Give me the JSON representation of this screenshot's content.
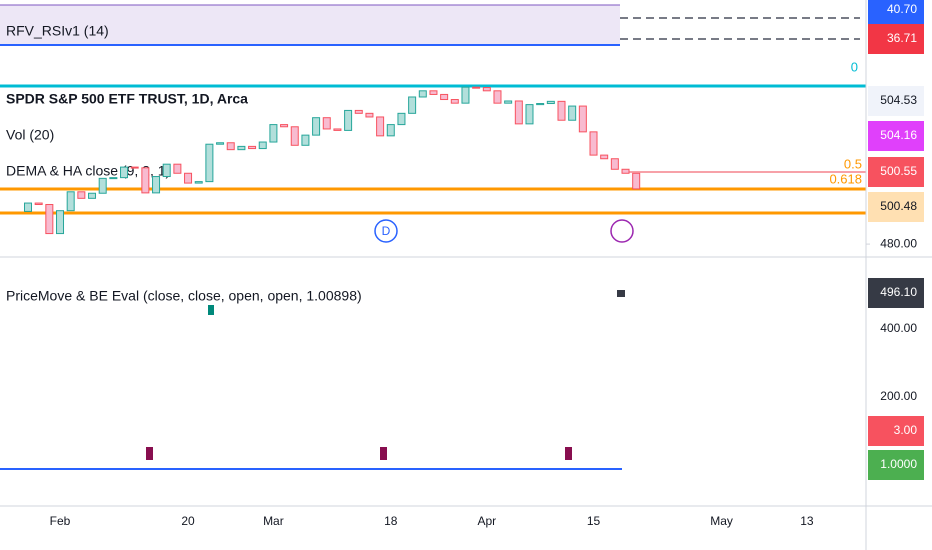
{
  "legend": {
    "rsi": "RFV_RSIv1 (14)",
    "symbol": "SPDR S&P 500 ETF TRUST, 1D, Arca",
    "volume": "Vol (20)",
    "dema": "DEMA & HA close (9, 2, 1)",
    "pricemove": "PriceMove & BE Eval (close, close, open, open, 1.00898)"
  },
  "fib_labels": [
    "0",
    "0.5",
    "0.618"
  ],
  "price_tags": [
    {
      "text": "40.70",
      "bg": "#2962ff",
      "fg": "#ffffff"
    },
    {
      "text": "36.71",
      "bg": "#f23645",
      "fg": "#ffffff"
    },
    {
      "text": "504.53",
      "bg": "#f0f3fa",
      "fg": "#131722"
    },
    {
      "text": "504.16",
      "bg": "#e040fb",
      "fg": "#ffffff"
    },
    {
      "text": "500.55",
      "bg": "#f7525f",
      "fg": "#ffffff"
    },
    {
      "text": "500.48",
      "bg": "#ffe0b2",
      "fg": "#131722"
    },
    {
      "text": "496.10",
      "bg": "#363a45",
      "fg": "#ffffff"
    },
    {
      "text": "3.00",
      "bg": "#f7525f",
      "fg": "#ffffff"
    },
    {
      "text": "1.0000",
      "bg": "#4caf50",
      "fg": "#ffffff"
    }
  ],
  "lower_axis": [
    "400.00",
    "200.00"
  ],
  "chart_data": {
    "type": "candlestick",
    "color_up": "#26a69a",
    "color_down": "#f7525f",
    "categories": [
      null,
      null,
      null,
      "Feb",
      null,
      null,
      null,
      null,
      null,
      null,
      null,
      null,
      null,
      null,
      null,
      "20",
      null,
      null,
      null,
      null,
      null,
      null,
      null,
      "Mar",
      null,
      null,
      null,
      null,
      null,
      null,
      null,
      null,
      null,
      null,
      "18",
      null,
      null,
      null,
      null,
      null,
      null,
      null,
      null,
      "Apr",
      null,
      null,
      null,
      null,
      null,
      null,
      null,
      null,
      null,
      "15",
      null,
      null,
      null,
      null,
      null,
      null,
      null,
      null,
      null,
      null,
      null,
      "May",
      null,
      null,
      null,
      null,
      null,
      null,
      null,
      "13"
    ],
    "open": [
      489.0,
      491.3,
      490.9,
      482.9,
      489.2,
      494.4,
      492.6,
      494.0,
      498.1,
      498.3,
      501.2,
      501.0,
      494.1,
      498.6,
      502.0,
      499.5,
      496.8,
      497.2,
      507.5,
      507.9,
      506.0,
      506.9,
      506.3,
      508.1,
      512.9,
      512.3,
      507.2,
      510.0,
      514.8,
      511.7,
      511.3,
      516.8,
      516.0,
      515.0,
      509.8,
      512.9,
      516.0,
      520.5,
      522.2,
      521.2,
      519.8,
      518.8,
      523.2,
      523.1,
      522.2,
      518.8,
      519.4,
      513.1,
      518.4,
      518.7,
      519.3,
      514.1,
      518.0,
      510.9,
      504.5,
      503.5,
      500.6,
      499.5,
      null,
      null,
      null,
      null,
      null,
      null,
      null,
      null,
      null,
      null,
      null,
      null,
      null,
      null,
      null,
      null
    ],
    "close": [
      491.3,
      490.9,
      482.9,
      489.2,
      494.4,
      492.6,
      494.0,
      498.1,
      498.3,
      501.2,
      501.0,
      494.1,
      498.6,
      502.0,
      499.5,
      496.8,
      497.2,
      507.5,
      507.9,
      506.0,
      506.9,
      506.3,
      508.1,
      512.9,
      512.3,
      507.2,
      510.0,
      514.8,
      511.7,
      511.3,
      516.8,
      516.0,
      515.0,
      509.8,
      512.9,
      516.0,
      520.5,
      522.2,
      521.2,
      519.8,
      518.8,
      523.2,
      523.1,
      522.2,
      518.8,
      519.4,
      513.1,
      518.4,
      518.7,
      519.3,
      514.1,
      518.0,
      510.9,
      504.5,
      503.5,
      500.6,
      499.5,
      495.2,
      null,
      null,
      null,
      null,
      null,
      null,
      null,
      null,
      null,
      null,
      null,
      null,
      null,
      null,
      null,
      null
    ],
    "ylim": [
      477,
      547.2
    ],
    "yticks": [
      {
        "value": 480,
        "label": "480.00"
      }
    ]
  }
}
